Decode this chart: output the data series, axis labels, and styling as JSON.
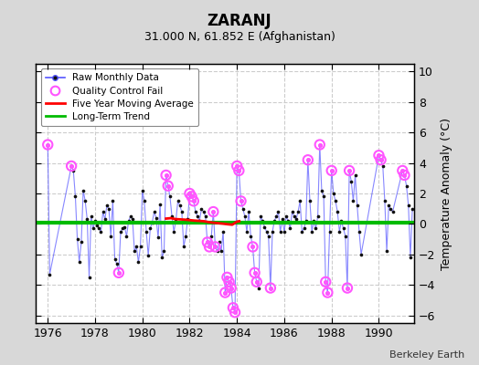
{
  "title": "ZARANJ",
  "subtitle": "31.000 N, 61.852 E (Afghanistan)",
  "credit": "Berkeley Earth",
  "ylabel": "Temperature Anomaly (°C)",
  "xlim": [
    1975.5,
    1991.5
  ],
  "ylim": [
    -6.5,
    10.5
  ],
  "yticks": [
    -6,
    -4,
    -2,
    0,
    2,
    4,
    6,
    8,
    10
  ],
  "xticks": [
    1976,
    1978,
    1980,
    1982,
    1984,
    1986,
    1988,
    1990
  ],
  "bg_color": "#d8d8d8",
  "plot_bg_color": "#ffffff",
  "raw_line_color": "#5555ff",
  "raw_dot_color": "#111111",
  "qc_fail_color": "#ff55ff",
  "moving_avg_color": "#ff0000",
  "trend_color": "#00bb00",
  "grid_color": "#cccccc",
  "raw_data": [
    [
      1976.0,
      5.2
    ],
    [
      1976.083,
      -3.3
    ],
    [
      1977.0,
      3.8
    ],
    [
      1977.083,
      3.5
    ],
    [
      1977.167,
      1.8
    ],
    [
      1977.25,
      -1.0
    ],
    [
      1977.333,
      -2.5
    ],
    [
      1977.417,
      -1.2
    ],
    [
      1977.5,
      2.2
    ],
    [
      1977.583,
      1.5
    ],
    [
      1977.667,
      0.3
    ],
    [
      1977.75,
      -3.5
    ],
    [
      1977.833,
      0.5
    ],
    [
      1977.917,
      -0.3
    ],
    [
      1978.0,
      0.2
    ],
    [
      1978.083,
      -0.1
    ],
    [
      1978.167,
      -0.3
    ],
    [
      1978.25,
      -0.5
    ],
    [
      1978.333,
      0.8
    ],
    [
      1978.417,
      0.3
    ],
    [
      1978.5,
      1.2
    ],
    [
      1978.583,
      1.0
    ],
    [
      1978.667,
      -0.8
    ],
    [
      1978.75,
      1.5
    ],
    [
      1978.833,
      -2.3
    ],
    [
      1978.917,
      -2.6
    ],
    [
      1979.0,
      -3.2
    ],
    [
      1979.083,
      -0.5
    ],
    [
      1979.167,
      -0.3
    ],
    [
      1979.25,
      -0.2
    ],
    [
      1979.333,
      -0.8
    ],
    [
      1979.417,
      0.2
    ],
    [
      1979.5,
      0.5
    ],
    [
      1979.583,
      0.3
    ],
    [
      1979.667,
      -1.8
    ],
    [
      1979.75,
      -1.5
    ],
    [
      1979.833,
      -2.5
    ],
    [
      1979.917,
      -1.5
    ],
    [
      1980.0,
      2.2
    ],
    [
      1980.083,
      1.5
    ],
    [
      1980.167,
      -0.5
    ],
    [
      1980.25,
      -2.1
    ],
    [
      1980.333,
      -0.3
    ],
    [
      1980.417,
      0.1
    ],
    [
      1980.5,
      0.8
    ],
    [
      1980.583,
      0.4
    ],
    [
      1980.667,
      -0.9
    ],
    [
      1980.75,
      1.3
    ],
    [
      1980.833,
      -2.2
    ],
    [
      1980.917,
      -1.8
    ],
    [
      1981.0,
      3.2
    ],
    [
      1981.083,
      2.5
    ],
    [
      1981.167,
      1.8
    ],
    [
      1981.25,
      0.5
    ],
    [
      1981.333,
      -0.5
    ],
    [
      1981.417,
      0.2
    ],
    [
      1981.5,
      1.5
    ],
    [
      1981.583,
      1.2
    ],
    [
      1981.667,
      0.8
    ],
    [
      1981.75,
      -1.5
    ],
    [
      1981.833,
      -0.8
    ],
    [
      1981.917,
      0.3
    ],
    [
      1982.0,
      2.0
    ],
    [
      1982.083,
      1.8
    ],
    [
      1982.167,
      1.5
    ],
    [
      1982.25,
      0.8
    ],
    [
      1982.333,
      0.5
    ],
    [
      1982.417,
      0.2
    ],
    [
      1982.5,
      1.0
    ],
    [
      1982.583,
      0.8
    ],
    [
      1982.667,
      0.5
    ],
    [
      1982.75,
      -1.2
    ],
    [
      1982.833,
      -1.5
    ],
    [
      1982.917,
      -0.8
    ],
    [
      1983.0,
      0.8
    ],
    [
      1983.083,
      -1.5
    ],
    [
      1983.167,
      -1.8
    ],
    [
      1983.25,
      -1.2
    ],
    [
      1983.333,
      -1.8
    ],
    [
      1983.417,
      -0.5
    ],
    [
      1983.5,
      -4.5
    ],
    [
      1983.583,
      -3.5
    ],
    [
      1983.667,
      -3.8
    ],
    [
      1983.75,
      -4.2
    ],
    [
      1983.833,
      -5.5
    ],
    [
      1983.917,
      -5.8
    ],
    [
      1984.0,
      3.8
    ],
    [
      1984.083,
      3.5
    ],
    [
      1984.167,
      1.5
    ],
    [
      1984.25,
      1.0
    ],
    [
      1984.333,
      0.5
    ],
    [
      1984.417,
      -0.5
    ],
    [
      1984.5,
      0.8
    ],
    [
      1984.583,
      -0.8
    ],
    [
      1984.667,
      -1.5
    ],
    [
      1984.75,
      -3.2
    ],
    [
      1984.833,
      -3.8
    ],
    [
      1984.917,
      -4.2
    ],
    [
      1985.0,
      0.5
    ],
    [
      1985.083,
      0.2
    ],
    [
      1985.167,
      -0.2
    ],
    [
      1985.25,
      -0.5
    ],
    [
      1985.333,
      -0.8
    ],
    [
      1985.417,
      -4.2
    ],
    [
      1985.5,
      -0.5
    ],
    [
      1985.583,
      0.2
    ],
    [
      1985.667,
      0.5
    ],
    [
      1985.75,
      0.8
    ],
    [
      1985.833,
      -0.5
    ],
    [
      1985.917,
      0.3
    ],
    [
      1986.0,
      -0.5
    ],
    [
      1986.083,
      0.5
    ],
    [
      1986.167,
      0.2
    ],
    [
      1986.25,
      -0.3
    ],
    [
      1986.333,
      0.8
    ],
    [
      1986.417,
      0.5
    ],
    [
      1986.5,
      0.3
    ],
    [
      1986.583,
      0.8
    ],
    [
      1986.667,
      1.5
    ],
    [
      1986.75,
      -0.5
    ],
    [
      1986.833,
      -0.3
    ],
    [
      1986.917,
      0.2
    ],
    [
      1987.0,
      4.2
    ],
    [
      1987.083,
      1.5
    ],
    [
      1987.167,
      -0.5
    ],
    [
      1987.25,
      0.2
    ],
    [
      1987.333,
      -0.3
    ],
    [
      1987.417,
      0.5
    ],
    [
      1987.5,
      5.2
    ],
    [
      1987.583,
      2.2
    ],
    [
      1987.667,
      1.8
    ],
    [
      1987.75,
      -3.8
    ],
    [
      1987.833,
      -4.5
    ],
    [
      1987.917,
      -0.5
    ],
    [
      1988.0,
      3.5
    ],
    [
      1988.083,
      2.0
    ],
    [
      1988.167,
      1.5
    ],
    [
      1988.25,
      0.8
    ],
    [
      1988.333,
      -0.5
    ],
    [
      1988.417,
      0.2
    ],
    [
      1988.5,
      -0.3
    ],
    [
      1988.583,
      -0.8
    ],
    [
      1988.667,
      -4.2
    ],
    [
      1988.75,
      3.5
    ],
    [
      1988.833,
      2.8
    ],
    [
      1988.917,
      1.5
    ],
    [
      1989.0,
      3.2
    ],
    [
      1989.083,
      1.2
    ],
    [
      1989.167,
      -0.5
    ],
    [
      1989.25,
      -2.0
    ],
    [
      1990.0,
      4.5
    ],
    [
      1990.083,
      4.2
    ],
    [
      1990.167,
      3.8
    ],
    [
      1990.25,
      1.5
    ],
    [
      1990.333,
      -1.8
    ],
    [
      1990.417,
      1.2
    ],
    [
      1990.5,
      1.0
    ],
    [
      1990.583,
      0.8
    ],
    [
      1991.0,
      3.5
    ],
    [
      1991.083,
      3.2
    ],
    [
      1991.167,
      2.5
    ],
    [
      1991.25,
      1.2
    ],
    [
      1991.333,
      -2.2
    ],
    [
      1991.417,
      1.0
    ]
  ],
  "qc_fail_points": [
    [
      1976.0,
      5.2
    ],
    [
      1977.0,
      3.8
    ],
    [
      1979.0,
      -3.2
    ],
    [
      1981.0,
      3.2
    ],
    [
      1981.083,
      2.5
    ],
    [
      1982.0,
      2.0
    ],
    [
      1982.083,
      1.8
    ],
    [
      1982.167,
      1.5
    ],
    [
      1982.75,
      -1.2
    ],
    [
      1982.833,
      -1.5
    ],
    [
      1983.0,
      0.8
    ],
    [
      1983.083,
      -1.5
    ],
    [
      1983.5,
      -4.5
    ],
    [
      1983.583,
      -3.5
    ],
    [
      1983.667,
      -3.8
    ],
    [
      1983.75,
      -4.2
    ],
    [
      1983.833,
      -5.5
    ],
    [
      1983.917,
      -5.8
    ],
    [
      1984.0,
      3.8
    ],
    [
      1984.083,
      3.5
    ],
    [
      1984.167,
      1.5
    ],
    [
      1984.667,
      -1.5
    ],
    [
      1984.75,
      -3.2
    ],
    [
      1984.833,
      -3.8
    ],
    [
      1985.417,
      -4.2
    ],
    [
      1987.0,
      4.2
    ],
    [
      1987.5,
      5.2
    ],
    [
      1987.75,
      -3.8
    ],
    [
      1987.833,
      -4.5
    ],
    [
      1988.0,
      3.5
    ],
    [
      1988.667,
      -4.2
    ],
    [
      1988.75,
      3.5
    ],
    [
      1990.0,
      4.5
    ],
    [
      1990.083,
      4.2
    ],
    [
      1991.0,
      3.5
    ],
    [
      1991.083,
      3.2
    ]
  ],
  "moving_avg": [
    [
      1981.0,
      0.35
    ],
    [
      1981.2,
      0.38
    ],
    [
      1981.4,
      0.32
    ],
    [
      1981.6,
      0.3
    ],
    [
      1981.8,
      0.28
    ],
    [
      1982.0,
      0.25
    ],
    [
      1982.2,
      0.22
    ],
    [
      1982.4,
      0.2
    ],
    [
      1982.6,
      0.18
    ],
    [
      1982.8,
      0.12
    ],
    [
      1983.0,
      0.08
    ],
    [
      1983.2,
      0.05
    ],
    [
      1983.4,
      0.02
    ],
    [
      1983.6,
      -0.02
    ],
    [
      1983.8,
      -0.05
    ],
    [
      1984.0,
      0.15
    ],
    [
      1984.1,
      0.18
    ]
  ],
  "trend_y": 0.1
}
